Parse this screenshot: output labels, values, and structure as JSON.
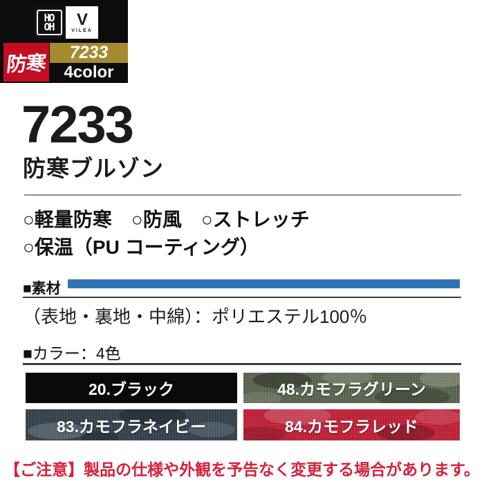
{
  "badge": {
    "hooh_logo": {
      "line1": "HO",
      "line2": "OH"
    },
    "vilea_logo": {
      "v": "V",
      "text": "VILEA"
    },
    "bohkan_label": "防寒",
    "product_code": "7233",
    "color_count_label": "4color",
    "colors": {
      "red": "#c30d23",
      "gold": "#a58b2e",
      "black": "#0c0c0c"
    }
  },
  "product": {
    "code": "7233",
    "name": "防寒ブルゾン"
  },
  "features": {
    "line1": "○軽量防寒　○防風　○ストレッチ",
    "line2": "○保温（PU コーティング）"
  },
  "material": {
    "heading": "■素材",
    "bar_color": "#2e75b6",
    "description": "（表地・裏地・中綿）：ポリエステル100％"
  },
  "color_section": {
    "heading": "■カラー：4色",
    "swatches": [
      {
        "label": "20.ブラック",
        "color": "#0a0a0a"
      },
      {
        "label": "48.カモフラグリーン",
        "color": "#5c6550"
      },
      {
        "label": "83.カモフラネイビー",
        "color": "#36434e"
      },
      {
        "label": "84.カモフラレッド",
        "color": "#c2233a"
      }
    ]
  },
  "notice": {
    "text": "【ご注意】製品の仕様や外観を予告なく変更する場合があります。",
    "color": "#d6213c"
  }
}
